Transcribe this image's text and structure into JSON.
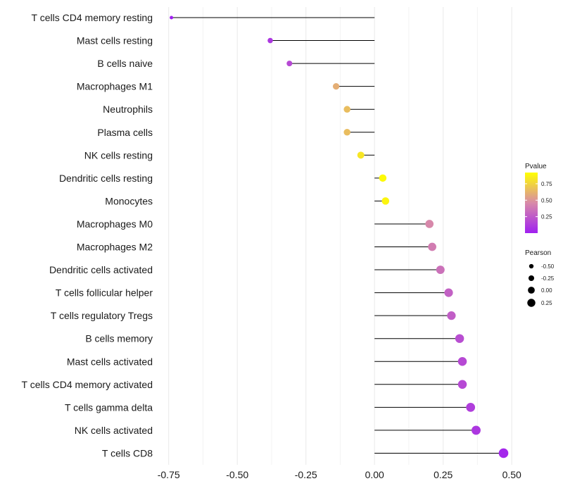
{
  "chart_data": {
    "type": "lollipop",
    "categories": [
      "T cells CD4 memory resting",
      "Mast cells resting",
      "B cells naive",
      "Macrophages M1",
      "Neutrophils",
      "Plasma cells",
      "NK cells resting",
      "Dendritic cells resting",
      "Monocytes",
      "Macrophages M0",
      "Macrophages M2",
      "Dendritic cells activated",
      "T cells follicular helper",
      "T cells regulatory  Tregs ",
      "B cells memory",
      "Mast cells activated",
      "T cells CD4 memory activated",
      "T cells gamma delta",
      "NK cells activated",
      "T cells CD8"
    ],
    "pearson": [
      -0.74,
      -0.38,
      -0.31,
      -0.14,
      -0.1,
      -0.1,
      -0.05,
      0.03,
      0.04,
      0.2,
      0.21,
      0.24,
      0.27,
      0.28,
      0.31,
      0.32,
      0.32,
      0.35,
      0.37,
      0.47
    ],
    "pvalue": [
      0.001,
      0.1,
      0.18,
      0.6,
      0.66,
      0.66,
      0.82,
      0.9,
      0.88,
      0.45,
      0.4,
      0.35,
      0.28,
      0.27,
      0.2,
      0.18,
      0.18,
      0.13,
      0.1,
      0.03
    ],
    "xlim": [
      -0.78,
      0.52
    ],
    "x_ticks": [
      -0.75,
      -0.5,
      -0.25,
      0.0,
      0.25,
      0.5
    ],
    "x_tick_labels": [
      "-0.75",
      "-0.50",
      "-0.25",
      "0.00",
      "0.25",
      "0.50"
    ],
    "xlabel": "",
    "ylabel": "",
    "grid": true,
    "legend_position": "right",
    "color_legend": {
      "title": "Pvalue",
      "ticks": [
        0.75,
        0.5,
        0.25
      ],
      "tick_labels": [
        "0.75",
        "0.50",
        "0.25"
      ],
      "range": [
        0.0,
        0.92
      ],
      "colors": {
        "low": "#a020f0",
        "mid": "#d88aa8",
        "high": "#ffff00"
      }
    },
    "size_legend": {
      "title": "Pearson",
      "values": [
        -0.5,
        -0.25,
        0.0,
        0.25
      ],
      "labels": [
        "-0.50",
        "-0.25",
        "0.00",
        "0.25"
      ]
    }
  }
}
